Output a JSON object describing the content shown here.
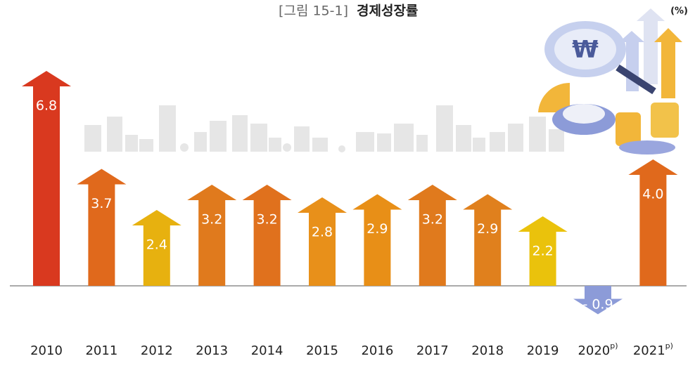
{
  "chart_data": {
    "type": "bar",
    "title_prefix": "[그림 15-1]",
    "title": "경제성장률",
    "unit": "(%)",
    "categories": [
      "2010",
      "2011",
      "2012",
      "2013",
      "2014",
      "2015",
      "2016",
      "2017",
      "2018",
      "2019",
      "2020",
      "2021"
    ],
    "category_superscripts": [
      null,
      null,
      null,
      null,
      null,
      null,
      null,
      null,
      null,
      null,
      "p)",
      "p)"
    ],
    "values": [
      6.8,
      3.7,
      2.4,
      3.2,
      3.2,
      2.8,
      2.9,
      3.2,
      2.9,
      2.2,
      -0.9,
      4.0
    ],
    "value_labels": [
      "6.8",
      "3.7",
      "2.4",
      "3.2",
      "3.2",
      "2.8",
      "2.9",
      "3.2",
      "2.9",
      "2.2",
      "- 0.9",
      "4.0"
    ],
    "colors": [
      "#d9391f",
      "#e0691c",
      "#e7b10f",
      "#e07a1d",
      "#e0711d",
      "#e8901a",
      "#e88f17",
      "#e07a1d",
      "#e0801d",
      "#eac20c",
      "#8c9bd8",
      "#e0691c"
    ]
  }
}
